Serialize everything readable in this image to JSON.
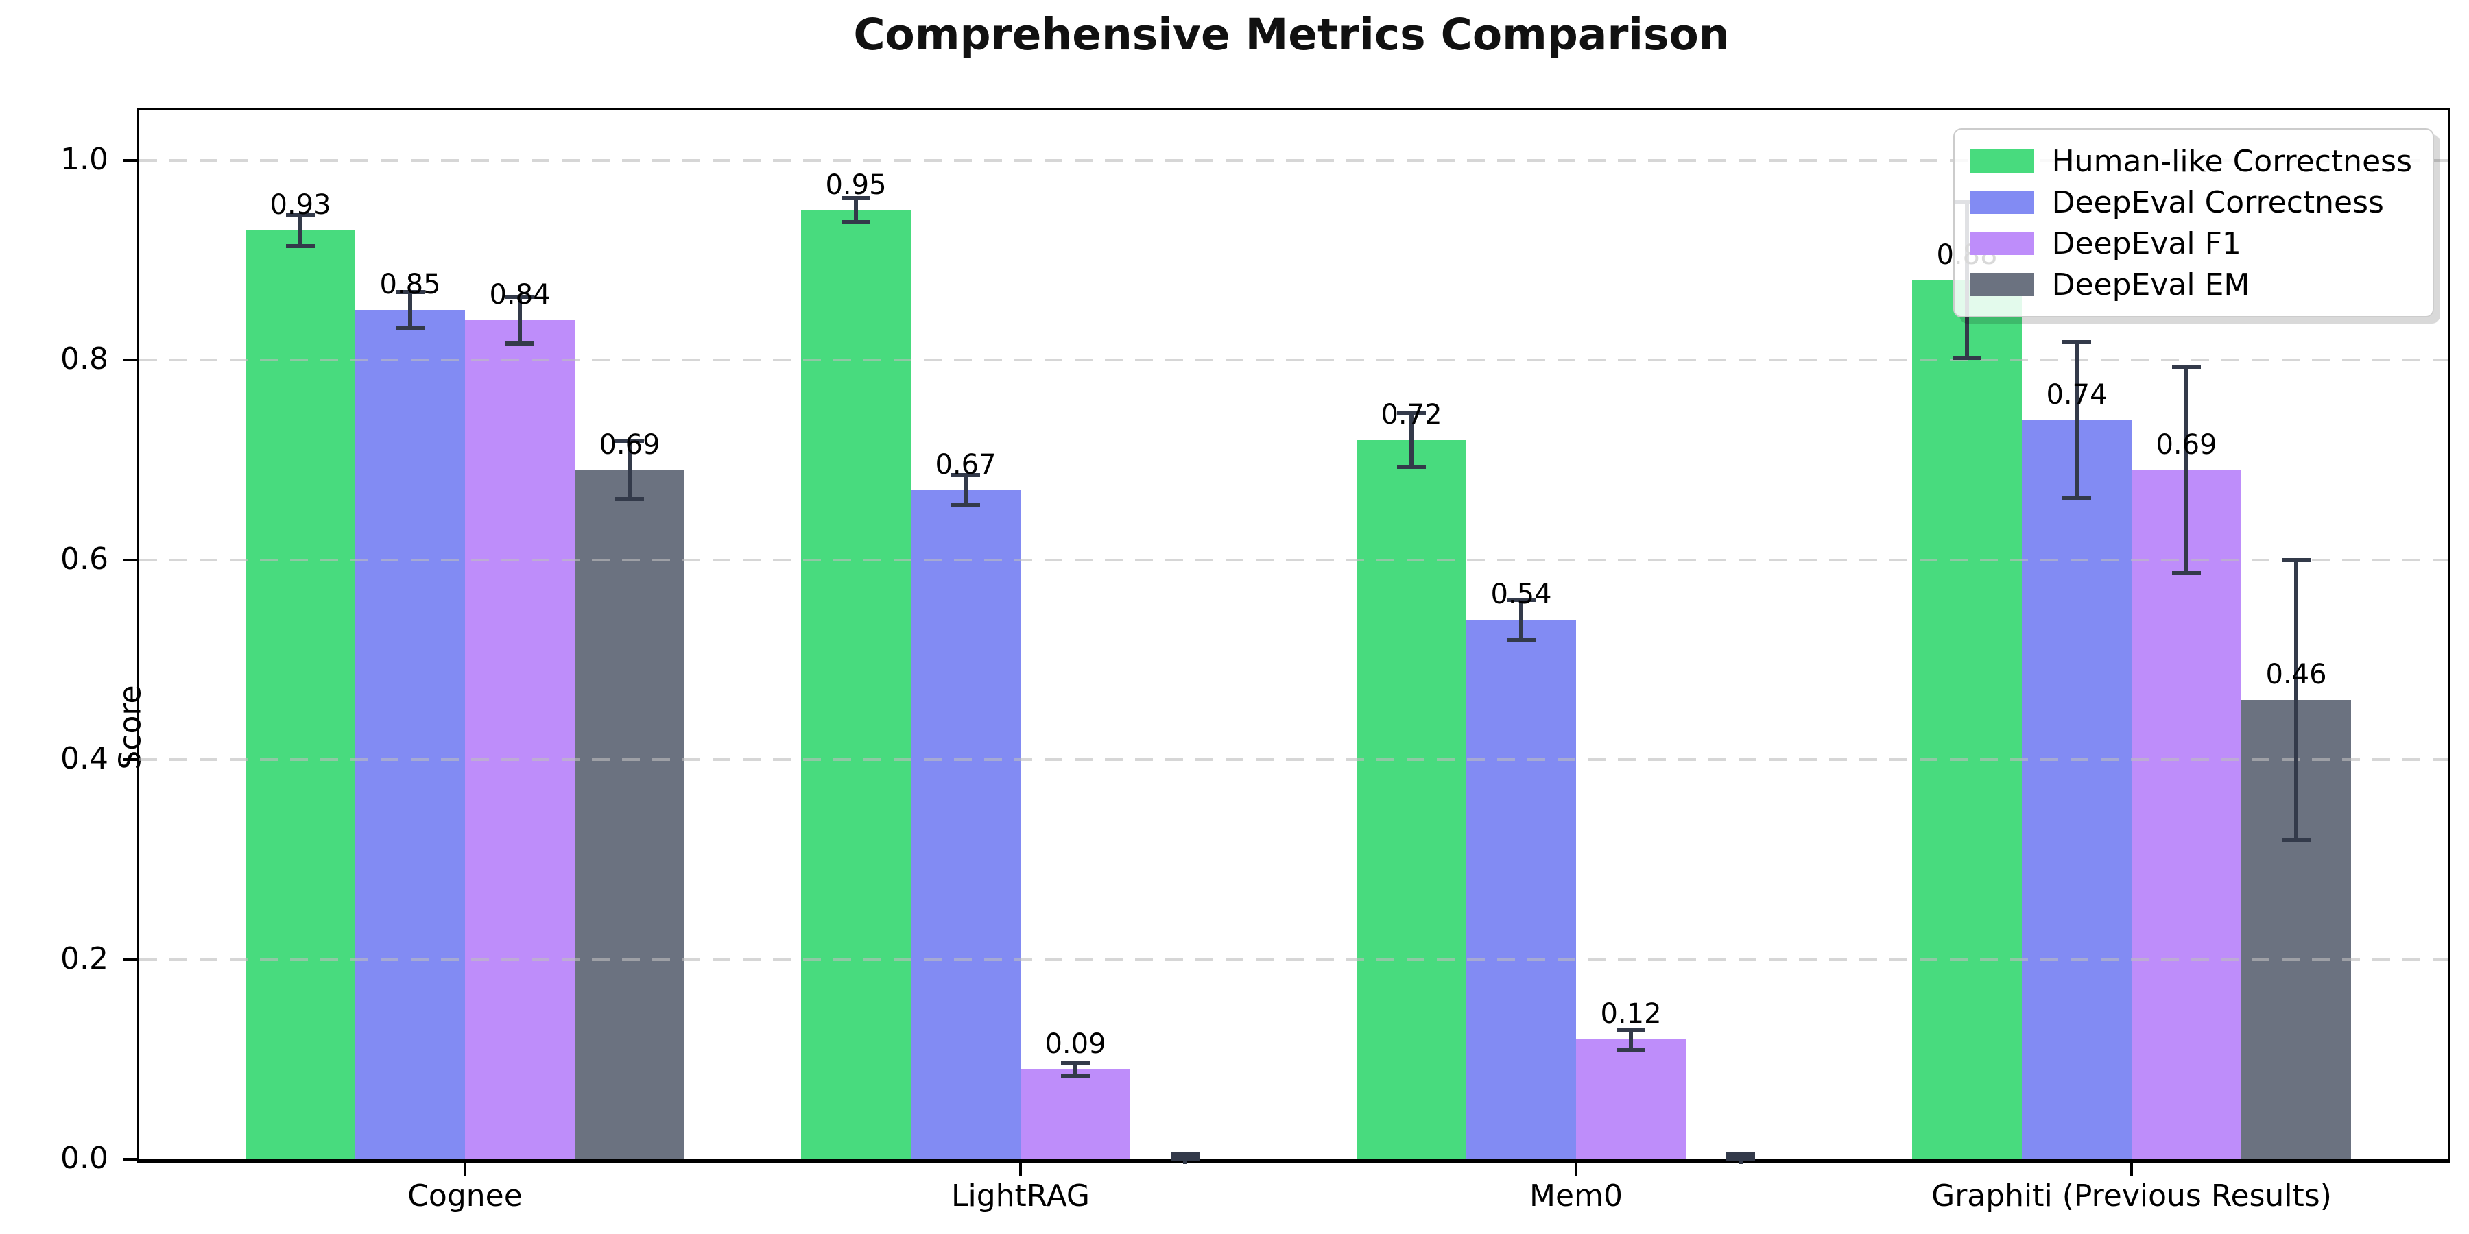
{
  "chart_data": {
    "type": "bar",
    "title": "Comprehensive Metrics Comparison",
    "ylabel": "Score",
    "xlabel": "",
    "ylim": [
      0,
      1.05
    ],
    "yticks": [
      "0.0",
      "0.2",
      "0.4",
      "0.6",
      "0.8",
      "1.0"
    ],
    "grid": "horizontal-dashed-over-bars",
    "legend_position": "upper-right",
    "categories": [
      "Cognee",
      "LightRAG",
      "Mem0",
      "Graphiti (Previous Results)"
    ],
    "series": [
      {
        "name": "Human-like Correctness",
        "color": "#48db7e",
        "values": [
          0.93,
          0.95,
          0.72,
          0.88
        ],
        "errors": [
          0.016,
          0.012,
          0.027,
          0.078
        ],
        "labels": [
          "0.93",
          "0.95",
          "0.72",
          "0.88"
        ]
      },
      {
        "name": "DeepEval Correctness",
        "color": "#828bf3",
        "values": [
          0.85,
          0.67,
          0.54,
          0.74
        ],
        "errors": [
          0.018,
          0.015,
          0.02,
          0.078
        ],
        "labels": [
          "0.85",
          "0.67",
          "0.54",
          "0.74"
        ]
      },
      {
        "name": "DeepEval F1",
        "color": "#be8dfa",
        "values": [
          0.84,
          0.09,
          0.12,
          0.69
        ],
        "errors": [
          0.023,
          0.007,
          0.01,
          0.103
        ],
        "labels": [
          "0.84",
          "0.09",
          "0.12",
          "0.69"
        ]
      },
      {
        "name": "DeepEval EM",
        "color": "#6b7280",
        "values": [
          0.69,
          0.0,
          0.0,
          0.46
        ],
        "errors": [
          0.029,
          0.005,
          0.005,
          0.14
        ],
        "labels": [
          "0.69",
          "",
          "",
          "0.46"
        ]
      }
    ],
    "error_bar_color": "#333a4a"
  }
}
